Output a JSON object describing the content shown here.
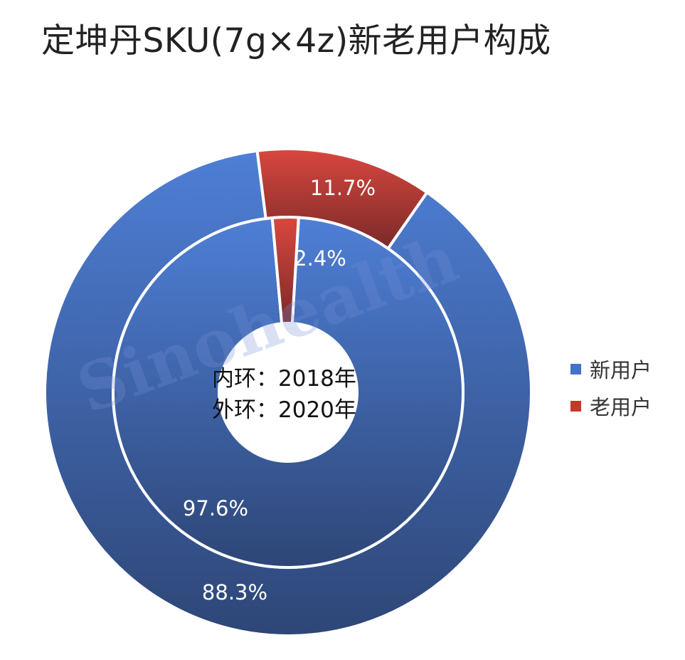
{
  "title": "定坤丹SKU(7g×4z)新老用户构成",
  "watermark": "Sinohealth",
  "center_label": {
    "line1": "内环：2018年",
    "line2": "外环：2020年"
  },
  "legend": [
    {
      "label": "新用户",
      "color": "#4472C4"
    },
    {
      "label": "老用户",
      "color": "#C0392B"
    }
  ],
  "colors": {
    "blue_top": "#4E7FD6",
    "blue_bottom": "#2E4677",
    "red_top": "#D9473F",
    "red_bottom": "#7A2A28"
  },
  "chart_data": {
    "type": "pie",
    "subtype": "donut",
    "categories": [
      "新用户",
      "老用户"
    ],
    "rings": [
      {
        "name": "内环：2018年",
        "values": [
          97.6,
          2.4
        ],
        "labels": [
          "97.6%",
          "2.4%"
        ]
      },
      {
        "name": "外环：2020年",
        "values": [
          88.3,
          11.7
        ],
        "labels": [
          "88.3%",
          "11.7%"
        ]
      }
    ]
  }
}
